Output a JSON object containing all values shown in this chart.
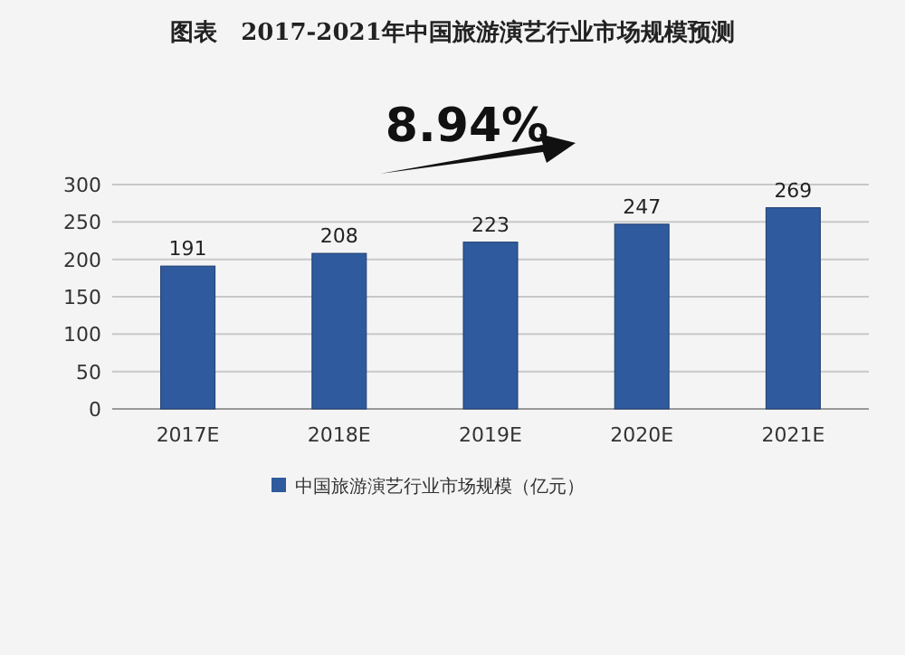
{
  "chart_data": {
    "type": "bar",
    "title": "图表　2017-2021年中国旅游演艺行业市场规模预测",
    "categories": [
      "2017E",
      "2018E",
      "2019E",
      "2020E",
      "2021E"
    ],
    "series": [
      {
        "name": "中国旅游演艺行业市场规模（亿元）",
        "color": "#2f5b9e",
        "values": [
          191,
          208,
          223,
          247,
          269
        ]
      }
    ],
    "ylim": [
      0,
      300
    ],
    "yticks": [
      0,
      50,
      100,
      150,
      200,
      250,
      300
    ],
    "grid": "y",
    "data_labels": true,
    "legend": "bottom",
    "annotations": [
      "8.94%"
    ]
  }
}
